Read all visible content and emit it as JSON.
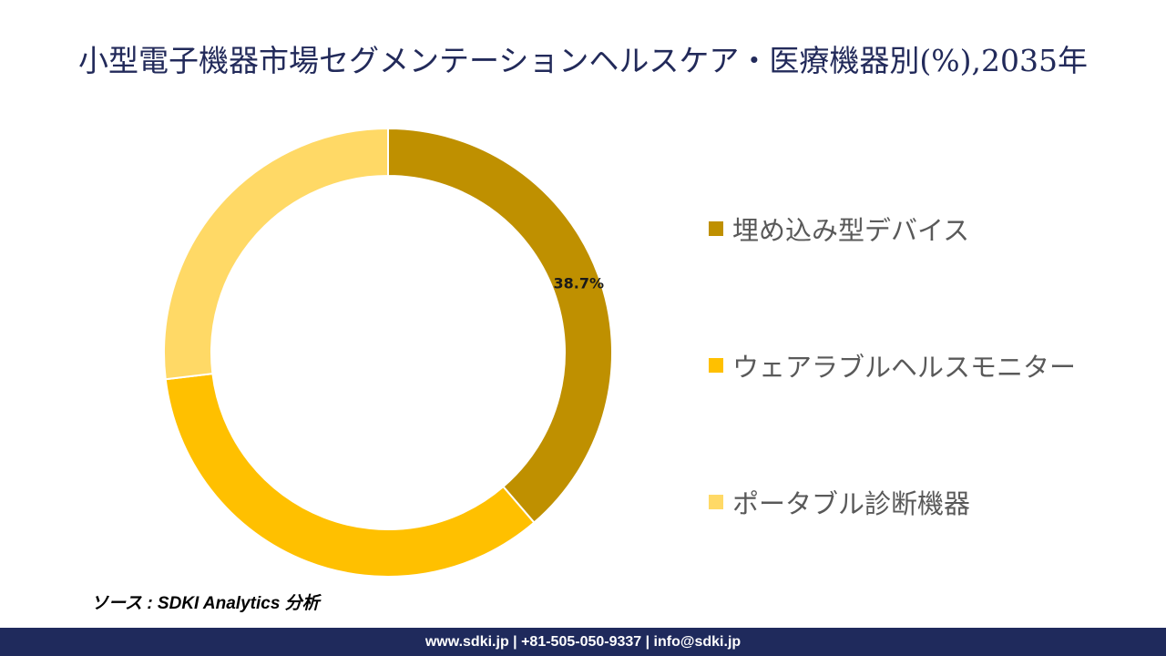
{
  "title": "小型電子機器市場セグメンテーションヘルスケア・医療機器別(%),2035年",
  "chart_data": {
    "type": "pie",
    "donut": true,
    "title": "小型電子機器市場セグメンテーションヘルスケア・医療機器別(%),2035年",
    "categories": [
      "埋め込み型デバイス",
      "ウェアラブルヘルスモニター",
      "ポータブル診断機器"
    ],
    "values": [
      38.7,
      34.4,
      26.9
    ],
    "data_labels": [
      "38.7%",
      "",
      ""
    ],
    "colors": [
      "#BF9000",
      "#FFC000",
      "#FFD966"
    ],
    "legend_position": "right"
  },
  "source": "ソース : SDKI Analytics 分析",
  "footer": "www.sdki.jp | +81-505-050-9337 | info@sdki.jp"
}
